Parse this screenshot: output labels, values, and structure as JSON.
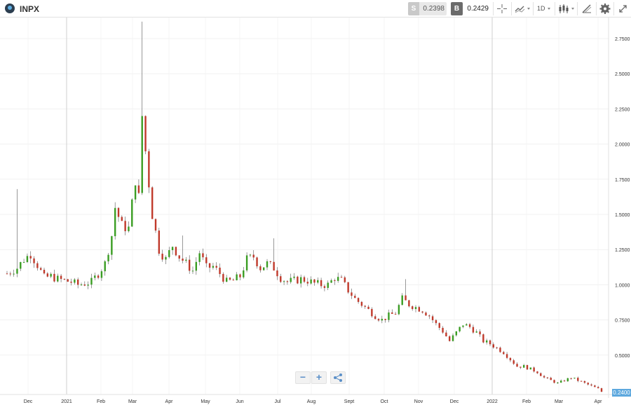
{
  "header": {
    "symbol": "INPX",
    "sell": {
      "label": "S",
      "value": "0.2398"
    },
    "buy": {
      "label": "B",
      "value": "0.2429"
    },
    "timeframe": "1D"
  },
  "chart_data": {
    "type": "candlestick",
    "title": "INPX",
    "ylim": [
      0.2,
      2.9
    ],
    "y_ticks": [
      "0.5000",
      "0.7500",
      "1.0000",
      "1.2500",
      "1.5000",
      "1.7500",
      "2.0000",
      "2.2500",
      "2.5000",
      "2.7500"
    ],
    "x_ticks": [
      "Dec",
      "2021",
      "Feb",
      "Mar",
      "Apr",
      "May",
      "Jun",
      "Jul",
      "Aug",
      "Sept",
      "Oct",
      "Nov",
      "Dec",
      "2022",
      "Feb",
      "Mar",
      "Apr"
    ],
    "last_price": "0.2400",
    "up_color": "#3a9d23",
    "down_color": "#c0392b",
    "close_path": [
      [
        0,
        1.08
      ],
      [
        3,
        1.12
      ],
      [
        5,
        1.18
      ],
      [
        7,
        1.22
      ],
      [
        9,
        1.14
      ],
      [
        11,
        1.05
      ],
      [
        13,
        1.06
      ],
      [
        15,
        1.04
      ],
      [
        17,
        1.03
      ],
      [
        19,
        1.02
      ],
      [
        21,
        1.0
      ],
      [
        23,
        1.01
      ],
      [
        25,
        1.02
      ],
      [
        27,
        1.08
      ],
      [
        29,
        1.15
      ],
      [
        31,
        1.35
      ],
      [
        32,
        1.55
      ],
      [
        34,
        1.42
      ],
      [
        36,
        1.4
      ],
      [
        38,
        1.75
      ],
      [
        39,
        1.62
      ],
      [
        40,
        2.2
      ],
      [
        41,
        1.95
      ],
      [
        42,
        1.72
      ],
      [
        43,
        1.5
      ],
      [
        45,
        1.25
      ],
      [
        47,
        1.18
      ],
      [
        49,
        1.28
      ],
      [
        51,
        1.2
      ],
      [
        53,
        1.15
      ],
      [
        55,
        1.1
      ],
      [
        57,
        1.23
      ],
      [
        59,
        1.12
      ],
      [
        61,
        1.13
      ],
      [
        63,
        1.08
      ],
      [
        65,
        1.02
      ],
      [
        67,
        1.03
      ],
      [
        69,
        1.06
      ],
      [
        71,
        1.18
      ],
      [
        73,
        1.2
      ],
      [
        75,
        1.12
      ],
      [
        77,
        1.15
      ],
      [
        79,
        1.12
      ],
      [
        81,
        1.05
      ],
      [
        83,
        1.02
      ],
      [
        85,
        1.03
      ],
      [
        87,
        1.04
      ],
      [
        89,
        1.03
      ],
      [
        91,
        1.01
      ],
      [
        93,
        1.0
      ],
      [
        95,
        1.0
      ],
      [
        97,
        1.05
      ],
      [
        99,
        1.03
      ],
      [
        101,
        0.96
      ],
      [
        103,
        0.9
      ],
      [
        105,
        0.86
      ],
      [
        107,
        0.82
      ],
      [
        109,
        0.78
      ],
      [
        111,
        0.75
      ],
      [
        113,
        0.78
      ],
      [
        115,
        0.8
      ],
      [
        117,
        0.9
      ],
      [
        119,
        0.86
      ],
      [
        121,
        0.84
      ],
      [
        123,
        0.82
      ],
      [
        125,
        0.78
      ],
      [
        127,
        0.72
      ],
      [
        129,
        0.67
      ],
      [
        131,
        0.6
      ],
      [
        133,
        0.66
      ],
      [
        135,
        0.72
      ],
      [
        137,
        0.7
      ],
      [
        139,
        0.66
      ],
      [
        141,
        0.6
      ],
      [
        143,
        0.58
      ],
      [
        145,
        0.55
      ],
      [
        147,
        0.52
      ],
      [
        149,
        0.47
      ],
      [
        151,
        0.42
      ],
      [
        153,
        0.42
      ],
      [
        155,
        0.4
      ],
      [
        157,
        0.38
      ],
      [
        159,
        0.34
      ],
      [
        161,
        0.32
      ],
      [
        163,
        0.3
      ],
      [
        165,
        0.32
      ],
      [
        167,
        0.34
      ],
      [
        169,
        0.32
      ],
      [
        171,
        0.3
      ],
      [
        173,
        0.28
      ],
      [
        175,
        0.26
      ],
      [
        176,
        0.24
      ]
    ]
  }
}
